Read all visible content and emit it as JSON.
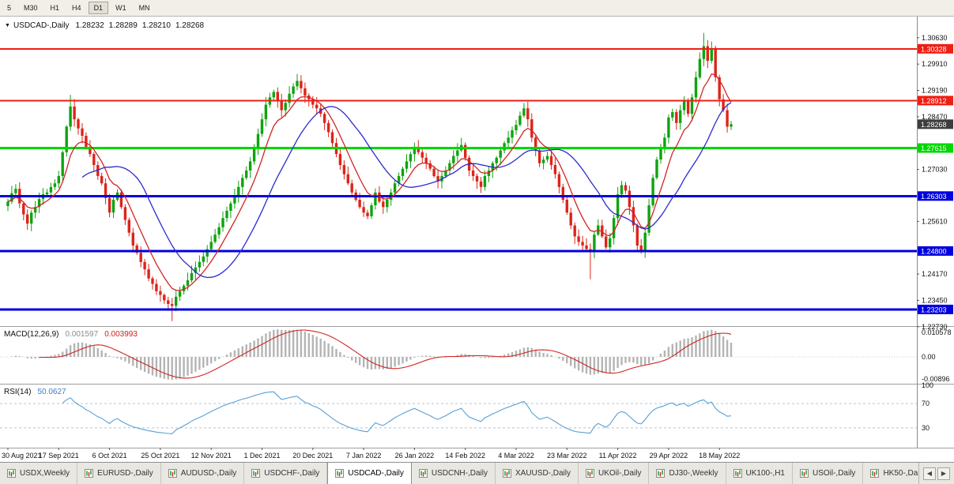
{
  "toolbar": {
    "periods": [
      {
        "label": "5",
        "active": false
      },
      {
        "label": "M30",
        "active": false
      },
      {
        "label": "H1",
        "active": false
      },
      {
        "label": "H4",
        "active": false
      },
      {
        "label": "D1",
        "active": true
      },
      {
        "label": "W1",
        "active": false
      },
      {
        "label": "MN",
        "active": false
      }
    ]
  },
  "chart": {
    "title": "USDCAD-,Daily",
    "ohlc": {
      "open": "1.28232",
      "high": "1.28289",
      "low": "1.28210",
      "close": "1.28268"
    },
    "current": {
      "value": 1.28268,
      "label": "1.28268"
    }
  },
  "indicators": {
    "macd": {
      "label": "MACD(12,26,9)",
      "value_main": "0.001597",
      "value_signal": "0.003993"
    },
    "rsi": {
      "label": "RSI(14)",
      "value": "50.0627"
    }
  },
  "tabs": {
    "nav_left": "◀",
    "nav_right": "▶",
    "items": [
      {
        "label": "USDX,Weekly",
        "active": false
      },
      {
        "label": "EURUSD-,Daily",
        "active": false
      },
      {
        "label": "AUDUSD-,Daily",
        "active": false
      },
      {
        "label": "USDCHF-,Daily",
        "active": false
      },
      {
        "label": "USDCAD-,Daily",
        "active": true
      },
      {
        "label": "USDCNH-,Daily",
        "active": false
      },
      {
        "label": "XAUUSD-,Daily",
        "active": false
      },
      {
        "label": "UKOil-,Daily",
        "active": false
      },
      {
        "label": "DJ30-,Weekly",
        "active": false
      },
      {
        "label": "UK100-,H1",
        "active": false
      },
      {
        "label": "USOil-,Daily",
        "active": false
      },
      {
        "label": "HK50-,Daily",
        "active": false
      }
    ]
  },
  "colors": {
    "candle_up": "#0fa30f",
    "candle_down": "#dd2419",
    "ma_fast": "#d02525",
    "ma_slow": "#2b2bd0",
    "line_red": "#ee1f14",
    "line_green": "#00d800",
    "line_blue": "#0000dd",
    "current_badge": "#3d3d3d",
    "macd_hist": "#b4b4b4",
    "macd_signal": "#d02525",
    "rsi_line": "#58a0d4",
    "rsi_level": "#b5c3d6"
  },
  "chart_data": {
    "type": "candlestick",
    "symbol": "USDCAD-",
    "timeframe": "Daily",
    "y_range": [
      1.2279,
      1.3108
    ],
    "y_ticks": [
      "1.30630",
      "1.29910",
      "1.29190",
      "1.28470",
      "1.27750",
      "1.27030",
      "1.26310",
      "1.25610",
      "1.24890",
      "1.24170",
      "1.23450",
      "1.22730"
    ],
    "x_labels": [
      {
        "index": 0,
        "label": "30 Aug 2021"
      },
      {
        "index": 13,
        "label": "17 Sep 2021"
      },
      {
        "index": 26,
        "label": "6 Oct 2021"
      },
      {
        "index": 39,
        "label": "25 Oct 2021"
      },
      {
        "index": 52,
        "label": "12 Nov 2021"
      },
      {
        "index": 65,
        "label": "1 Dec 2021"
      },
      {
        "index": 78,
        "label": "20 Dec 2021"
      },
      {
        "index": 91,
        "label": "7 Jan 2022"
      },
      {
        "index": 104,
        "label": "26 Jan 2022"
      },
      {
        "index": 117,
        "label": "14 Feb 2022"
      },
      {
        "index": 130,
        "label": "4 Mar 2022"
      },
      {
        "index": 143,
        "label": "23 Mar 2022"
      },
      {
        "index": 156,
        "label": "11 Apr 2022"
      },
      {
        "index": 169,
        "label": "29 Apr 2022"
      },
      {
        "index": 182,
        "label": "18 May 2022"
      }
    ],
    "closes": [
      1.2615,
      1.2638,
      1.265,
      1.261,
      1.258,
      1.2555,
      1.2585,
      1.26,
      1.2622,
      1.2635,
      1.264,
      1.2655,
      1.2665,
      1.2685,
      1.275,
      1.282,
      1.2875,
      1.284,
      1.2815,
      1.2795,
      1.2765,
      1.2745,
      1.2715,
      1.2685,
      1.2665,
      1.2625,
      1.2585,
      1.262,
      1.264,
      1.26,
      1.2565,
      1.253,
      1.2495,
      1.2475,
      1.245,
      1.243,
      1.2405,
      1.239,
      1.237,
      1.236,
      1.2345,
      1.2335,
      1.233,
      1.2355,
      1.237,
      1.2385,
      1.24,
      1.242,
      1.2435,
      1.245,
      1.2465,
      1.2485,
      1.2505,
      1.2525,
      1.2545,
      1.257,
      1.259,
      1.261,
      1.263,
      1.2655,
      1.268,
      1.27,
      1.2725,
      1.276,
      1.28,
      1.284,
      1.288,
      1.29,
      1.2915,
      1.289,
      1.2865,
      1.2885,
      1.291,
      1.293,
      1.2945,
      1.2925,
      1.2905,
      1.2895,
      1.288,
      1.287,
      1.2855,
      1.283,
      1.2805,
      1.2775,
      1.2745,
      1.2715,
      1.269,
      1.2665,
      1.264,
      1.262,
      1.26,
      1.2585,
      1.2575,
      1.2605,
      1.264,
      1.2615,
      1.26,
      1.262,
      1.264,
      1.2665,
      1.2685,
      1.2705,
      1.2725,
      1.2745,
      1.2765,
      1.275,
      1.2735,
      1.272,
      1.2705,
      1.2685,
      1.267,
      1.2685,
      1.27,
      1.272,
      1.274,
      1.2755,
      1.277,
      1.2735,
      1.27,
      1.2685,
      1.267,
      1.2655,
      1.2685,
      1.27,
      1.272,
      1.2735,
      1.2755,
      1.2775,
      1.279,
      1.281,
      1.2825,
      1.285,
      1.287,
      1.284,
      1.279,
      1.2755,
      1.272,
      1.273,
      1.274,
      1.2715,
      1.269,
      1.2655,
      1.262,
      1.2585,
      1.255,
      1.252,
      1.2505,
      1.2495,
      1.2485,
      1.248,
      1.2525,
      1.255,
      1.252,
      1.249,
      1.2515,
      1.257,
      1.2635,
      1.266,
      1.2645,
      1.26,
      1.255,
      1.2495,
      1.248,
      1.253,
      1.2605,
      1.268,
      1.273,
      1.276,
      1.279,
      1.2845,
      1.286,
      1.283,
      1.2865,
      1.289,
      1.2855,
      1.29,
      1.2955,
      1.3005,
      1.304,
      1.3,
      1.3035,
      1.2955,
      1.2895,
      1.2865,
      1.282,
      1.28268
    ],
    "wick_overrides": {
      "16": {
        "high": 1.2907
      },
      "42": {
        "low": 1.2288
      },
      "74": {
        "high": 1.2964
      },
      "149": {
        "low": 1.2403
      },
      "178": {
        "high": 1.3076
      }
    },
    "h_lines": [
      {
        "value": 1.30328,
        "label": "1.30328",
        "color_key": "line_red",
        "width": 2
      },
      {
        "value": 1.28912,
        "label": "1.28912",
        "color_key": "line_red",
        "width": 2
      },
      {
        "value": 1.27615,
        "label": "1.27615",
        "color_key": "line_green",
        "width": 3
      },
      {
        "value": 1.26303,
        "label": "1.26303",
        "color_key": "line_blue",
        "width": 3
      },
      {
        "value": 1.248,
        "label": "1.24800",
        "color_key": "line_blue",
        "width": 3
      },
      {
        "value": 1.23203,
        "label": "1.23203",
        "color_key": "line_blue",
        "width": 3
      }
    ],
    "moving_averages": [
      {
        "method": "ema",
        "period": 8,
        "color_key": "ma_fast",
        "width": 1.3
      },
      {
        "method": "sma",
        "period": 20,
        "color_key": "ma_slow",
        "width": 1.3
      }
    ],
    "indicators": {
      "macd": {
        "fast": 12,
        "slow": 26,
        "signal": 9,
        "axis_labels": [
          "0.010578",
          "0.00",
          "-0.00896"
        ]
      },
      "rsi": {
        "period": 14,
        "levels": [
          70,
          30
        ],
        "axis_labels": [
          {
            "text": "100",
            "value": 100
          },
          {
            "text": "70",
            "value": 70
          },
          {
            "text": "30",
            "value": 30
          }
        ]
      }
    }
  }
}
